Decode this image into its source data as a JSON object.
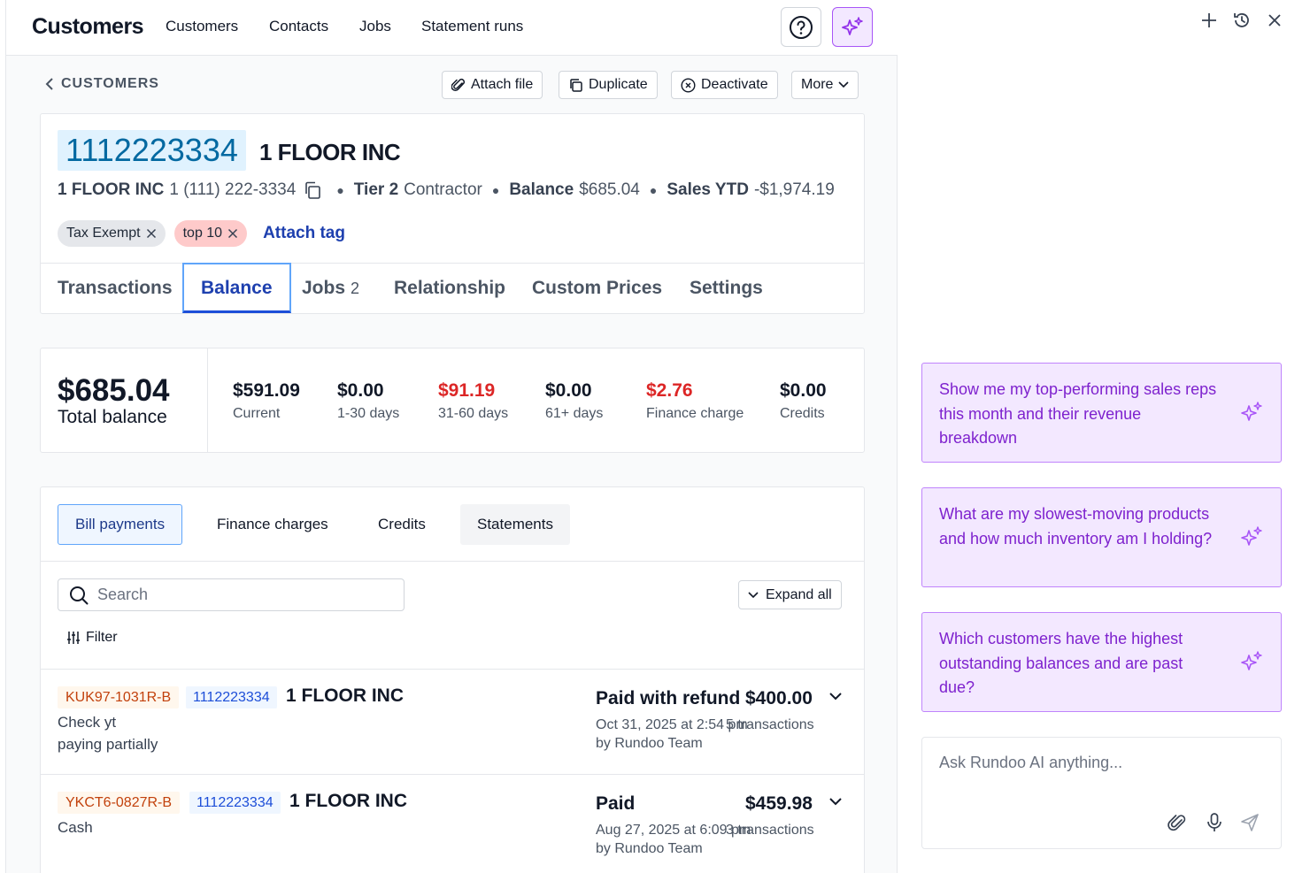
{
  "nav": {
    "brand": "Customers",
    "links": [
      "Customers",
      "Contacts",
      "Jobs",
      "Statement runs"
    ]
  },
  "breadcrumb": "CUSTOMERS",
  "actions": {
    "attach": "Attach file",
    "duplicate": "Duplicate",
    "deactivate": "Deactivate",
    "more": "More"
  },
  "customer": {
    "number": "1112223334",
    "name": "1 FLOOR INC",
    "meta_name": "1 FLOOR INC",
    "phone": "1 (111) 222-3334",
    "tier_label": "Tier 2",
    "tier_value": "Contractor",
    "balance_label": "Balance",
    "balance_value": "$685.04",
    "sales_label": "Sales YTD",
    "sales_value": "-$1,974.19",
    "tags": [
      "Tax Exempt",
      "top 10"
    ],
    "attach_tag": "Attach tag"
  },
  "tabs": {
    "transactions": "Transactions",
    "balance": "Balance",
    "jobs": "Jobs",
    "jobs_count": "2",
    "relationship": "Relationship",
    "custom_prices": "Custom Prices",
    "settings": "Settings"
  },
  "balance": {
    "total": "$685.04",
    "total_label": "Total balance",
    "buckets": [
      {
        "value": "$591.09",
        "label": "Current"
      },
      {
        "value": "$0.00",
        "label": "1-30 days"
      },
      {
        "value": "$91.19",
        "label": "31-60 days"
      },
      {
        "value": "$0.00",
        "label": "61+ days"
      },
      {
        "value": "$2.76",
        "label": "Finance charge"
      },
      {
        "value": "$0.00",
        "label": "Credits"
      }
    ]
  },
  "subtabs": [
    "Bill payments",
    "Finance charges",
    "Credits",
    "Statements"
  ],
  "list": {
    "search_placeholder": "Search",
    "expand_all": "Expand all",
    "filter": "Filter"
  },
  "rows": [
    {
      "ref": "KUK97-1031R-B",
      "num": "1112223334",
      "name": "1 FLOOR INC",
      "note1": "Check yt",
      "note2": "paying partially",
      "status": "Paid with refund",
      "amount": "$400.00",
      "date": "Oct 31, 2025 at 2:54 pm",
      "txn": "5 transactions",
      "by": "by Rundoo Team"
    },
    {
      "ref": "YKCT6-0827R-B",
      "num": "1112223334",
      "name": "1 FLOOR INC",
      "note1": "Cash",
      "note2": "",
      "status": "Paid",
      "amount": "$459.98",
      "date": "Aug 27, 2025 at 6:09 pm",
      "txn": "3 transactions",
      "by": "by Rundoo Team"
    }
  ],
  "ai": {
    "suggestions": [
      "Show me my top-performing sales reps this month and their revenue breakdown",
      "What are my slowest-moving products and how much inventory am I holding?",
      "Which customers have the highest outstanding balances and are past due?"
    ],
    "input_placeholder": "Ask Rundoo AI anything..."
  },
  "colors": {
    "accent_blue": "#1e40af",
    "negative_red": "#dc2626",
    "ai_purple": "#7e22ce",
    "ai_bg": "#f3e8ff"
  }
}
